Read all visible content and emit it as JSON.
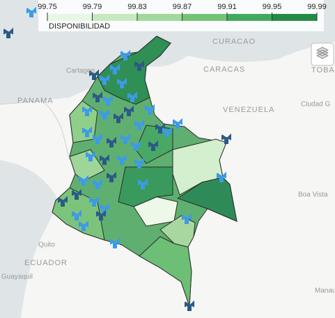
{
  "legend": {
    "title": "DISPONIBILIDAD",
    "range": [
      99.75,
      99.99
    ],
    "ticks": [
      99.75,
      99.79,
      99.83,
      99.87,
      99.91,
      99.95,
      99.99
    ],
    "colors": [
      "#e8f6e4",
      "#c7e9c0",
      "#a1d99b",
      "#74c476",
      "#41ab5d",
      "#238b45"
    ]
  },
  "places": [
    "CURACAO",
    "CARACAS",
    "Cartagen",
    "PANAMA",
    "VENEZUELA",
    "Ciudad G",
    "Boa Vista",
    "Quito",
    "ECUADOR",
    "Guayaquil",
    "Manau",
    "TOBAG"
  ]
}
